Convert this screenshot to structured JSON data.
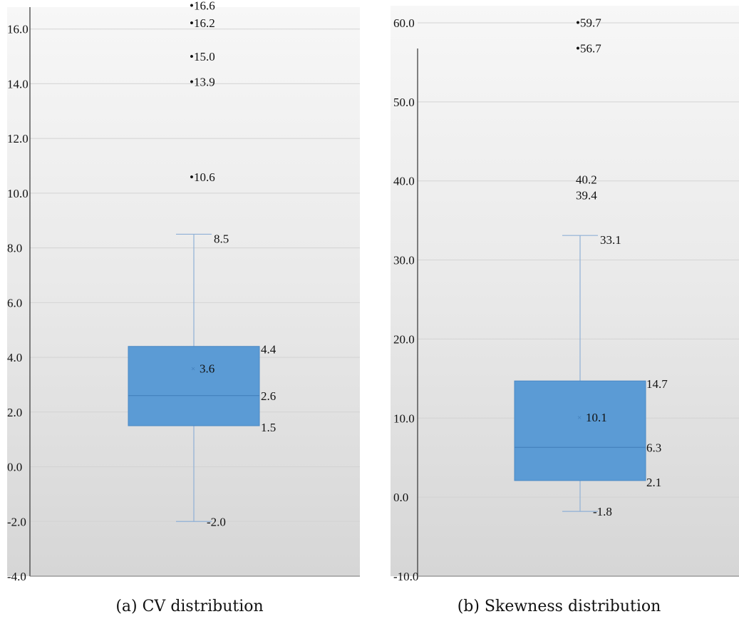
{
  "chart_data": [
    {
      "type": "box",
      "caption": "(a) CV distribution",
      "ylim": [
        -4.0,
        17.0
      ],
      "yticks": [
        -4.0,
        -2.0,
        0.0,
        2.0,
        4.0,
        6.0,
        8.0,
        10.0,
        12.0,
        14.0,
        16.0
      ],
      "grid": true,
      "colors": {
        "box": "#5b9bd5",
        "whisker": "#8fb0d6",
        "grid": "#d3d3d3"
      },
      "box": {
        "whisker_low": -2.0,
        "q1": 1.5,
        "median": 2.6,
        "mean": 3.6,
        "q3": 4.4,
        "whisker_high": 8.5
      },
      "outliers": [
        16.6,
        16.2,
        15.0,
        13.9,
        10.6
      ],
      "value_labels": {
        "whisker_low": "-2.0",
        "q1": "1.5",
        "median": "2.6",
        "mean": "3.6",
        "q3": "4.4",
        "whisker_high": "8.5",
        "outliers": [
          "•16.6",
          "•16.2",
          "•15.0",
          "•13.9",
          "•10.6"
        ]
      }
    },
    {
      "type": "box",
      "caption": "(b) Skewness distribution",
      "ylim": [
        -10.0,
        60.0
      ],
      "yticks": [
        -10.0,
        0.0,
        10.0,
        20.0,
        30.0,
        40.0,
        50.0,
        60.0
      ],
      "grid": true,
      "colors": {
        "box": "#5b9bd5",
        "whisker": "#8fb0d6",
        "grid": "#d3d3d3"
      },
      "box": {
        "whisker_low": -1.8,
        "q1": 2.1,
        "median": 6.3,
        "mean": 10.1,
        "q3": 14.7,
        "whisker_high": 33.1
      },
      "outliers": [
        59.7,
        56.7,
        40.2,
        39.4
      ],
      "value_labels": {
        "whisker_low": "-1.8",
        "q1": "2.1",
        "median": "6.3",
        "mean": "10.1",
        "q3": "14.7",
        "whisker_high": "33.1",
        "outliers": [
          "•59.7",
          "•56.7",
          "40.2",
          "39.4"
        ]
      }
    }
  ]
}
